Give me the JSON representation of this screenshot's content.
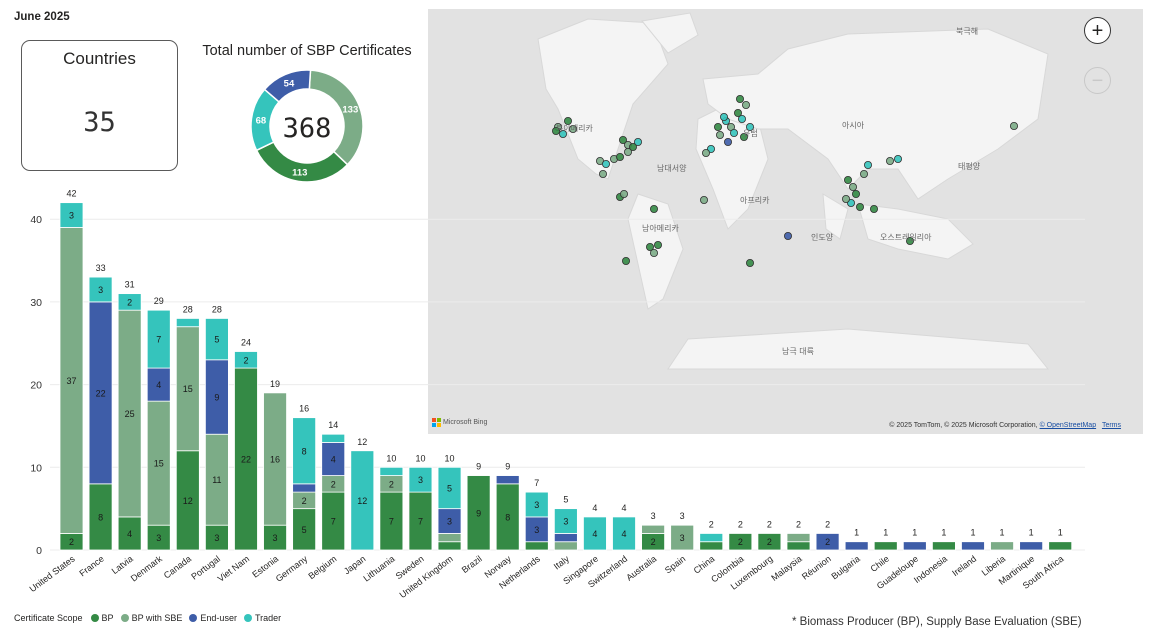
{
  "header": {
    "period": "June 2025"
  },
  "card": {
    "title": "Countries",
    "value": "35"
  },
  "donut": {
    "title": "Total number of SBP Certificates",
    "total": "368",
    "slices": [
      {
        "key": "bp_sbe",
        "value": 133,
        "color": "#7cac87"
      },
      {
        "key": "bp",
        "value": 113,
        "color": "#348a45"
      },
      {
        "key": "trader",
        "value": 68,
        "color": "#35c4bc"
      },
      {
        "key": "end_user",
        "value": 54,
        "color": "#3e5da8"
      }
    ]
  },
  "map": {
    "labels": {
      "north_america": "북아메리카",
      "atlantic": "남대서양",
      "south_america": "남아메리카",
      "africa": "아프리카",
      "europe": "유럽",
      "asia": "아시아",
      "indian_ocean": "인도양",
      "australia": "오스트레일리아",
      "pacific": "태평양",
      "antarctica": "남극 대륙",
      "north_marker": "북극해"
    },
    "zoom_in": "+",
    "zoom_out": "−",
    "bing": "Microsoft Bing",
    "attribution": "© 2025 TomTom, © 2025 Microsoft Corporation,",
    "osm": "© OpenStreetMap",
    "terms": "Terms"
  },
  "legend": {
    "title": "Certificate Scope",
    "items": [
      {
        "label": "BP",
        "color": "#348a45"
      },
      {
        "label": "BP with SBE",
        "color": "#7cac87"
      },
      {
        "label": "End-user",
        "color": "#3e5da8"
      },
      {
        "label": "Trader",
        "color": "#35c4bc"
      }
    ]
  },
  "footnote": "* Biomass Producer (BP), Supply Base Evaluation (SBE)",
  "chart_data": {
    "type": "bar",
    "stacked": true,
    "ylim": [
      0,
      42
    ],
    "yticks": [
      0,
      10,
      20,
      30,
      40
    ],
    "categories": [
      "United States",
      "France",
      "Latvia",
      "Denmark",
      "Canada",
      "Portugal",
      "Viet Nam",
      "Estonia",
      "Germany",
      "Belgium",
      "Japan",
      "Lithuania",
      "Sweden",
      "United Kingdom",
      "Brazil",
      "Norway",
      "Netherlands",
      "Italy",
      "Singapore",
      "Switzerland",
      "Australia",
      "Spain",
      "China",
      "Colombia",
      "Luxembourg",
      "Malaysia",
      "Réunion",
      "Bulgaria",
      "Chile",
      "Guadeloupe",
      "Indonesia",
      "Ireland",
      "Liberia",
      "Martinique",
      "South Africa"
    ],
    "totals": [
      42,
      33,
      31,
      29,
      28,
      28,
      24,
      19,
      16,
      14,
      12,
      10,
      10,
      10,
      9,
      9,
      7,
      5,
      4,
      4,
      3,
      3,
      2,
      2,
      2,
      2,
      2,
      1,
      1,
      1,
      1,
      1,
      1,
      1,
      1
    ],
    "series": [
      {
        "name": "BP",
        "color": "#348a45",
        "values": [
          2,
          8,
          4,
          3,
          12,
          3,
          22,
          3,
          5,
          7,
          0,
          7,
          7,
          1,
          9,
          8,
          1,
          0,
          0,
          0,
          2,
          0,
          1,
          2,
          2,
          1,
          0,
          0,
          1,
          0,
          1,
          0,
          0,
          0,
          1
        ],
        "labels": [
          "2",
          "8",
          "4",
          "3",
          "12",
          "3",
          "22",
          "3",
          "5",
          "7",
          "",
          "7",
          "7",
          "",
          "9",
          "8",
          "",
          "",
          "",
          "",
          "2",
          "",
          "",
          "2",
          "2",
          "",
          "",
          "",
          "",
          "",
          "",
          "",
          "",
          "",
          ""
        ]
      },
      {
        "name": "BP with SBE",
        "color": "#7cac87",
        "values": [
          37,
          0,
          25,
          15,
          15,
          11,
          0,
          16,
          2,
          2,
          0,
          2,
          0,
          1,
          0,
          0,
          0,
          1,
          0,
          0,
          1,
          3,
          0,
          0,
          0,
          1,
          0,
          0,
          0,
          0,
          0,
          0,
          1,
          0,
          0
        ],
        "labels": [
          "37",
          "",
          "25",
          "15",
          "15",
          "11",
          "",
          "16",
          "2",
          "2",
          "",
          "2",
          "",
          "",
          "",
          "",
          "",
          "",
          "",
          "",
          "",
          "3",
          "",
          "",
          "",
          "",
          "",
          "",
          "",
          "",
          "",
          "",
          "",
          "",
          ""
        ]
      },
      {
        "name": "End-user",
        "color": "#3e5da8",
        "values": [
          0,
          22,
          0,
          4,
          0,
          9,
          0,
          0,
          1,
          4,
          0,
          0,
          0,
          3,
          0,
          1,
          3,
          1,
          0,
          0,
          0,
          0,
          0,
          0,
          0,
          0,
          2,
          1,
          0,
          1,
          0,
          1,
          0,
          1,
          0
        ],
        "labels": [
          "",
          "22",
          "",
          "4",
          "",
          "9",
          "",
          "",
          "",
          "4",
          "",
          "",
          "",
          "3",
          "",
          "",
          "3",
          "",
          "",
          "",
          "",
          "",
          "",
          "",
          "",
          "",
          "2",
          "",
          "",
          "",
          "",
          "",
          "",
          "",
          ""
        ]
      },
      {
        "name": "Trader",
        "color": "#35c4bc",
        "values": [
          3,
          3,
          2,
          7,
          1,
          5,
          2,
          0,
          8,
          1,
          12,
          1,
          3,
          5,
          0,
          0,
          3,
          3,
          4,
          4,
          0,
          0,
          1,
          0,
          0,
          0,
          0,
          0,
          0,
          0,
          0,
          0,
          0,
          0,
          0
        ],
        "labels": [
          "3",
          "3",
          "2",
          "7",
          "",
          "5",
          "2",
          "",
          "8",
          "",
          "12",
          "",
          "3",
          "5",
          "",
          "",
          "3",
          "3",
          "4",
          "4",
          "",
          "",
          "",
          "",
          "",
          "",
          "",
          "",
          "",
          "",
          "",
          "",
          "",
          "",
          ""
        ]
      }
    ]
  }
}
